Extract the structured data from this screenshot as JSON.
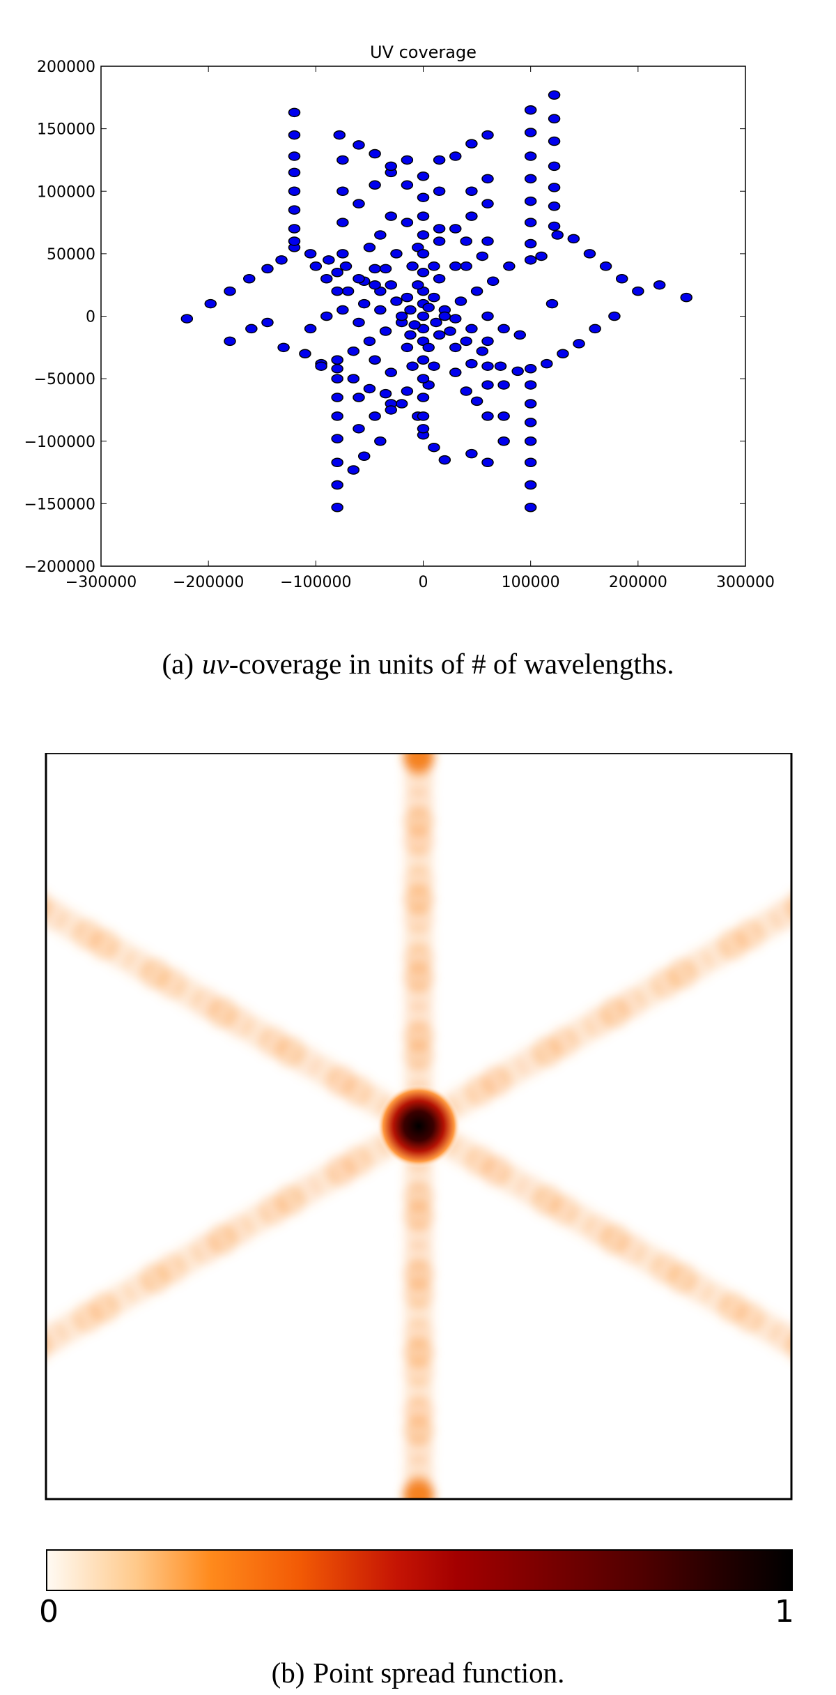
{
  "figure_a": {
    "caption_label": "(a)",
    "caption_em": "uv",
    "caption_rest": "-coverage in units of # of wavelengths."
  },
  "figure_b": {
    "caption_label": "(b)",
    "caption_text": "Point spread function.",
    "colorbar": {
      "min_label": "0",
      "max_label": "1",
      "colormap": [
        "#fffaf3",
        "#ffc98a",
        "#ff8a1c",
        "#f25a05",
        "#c51404",
        "#a30000",
        "#7d0000",
        "#4f0000",
        "#220000",
        "#000000"
      ]
    }
  },
  "chart_data": [
    {
      "type": "scatter",
      "title": "UV coverage",
      "xlabel": "",
      "ylabel": "",
      "xlim": [
        -300000,
        300000
      ],
      "ylim": [
        -200000,
        200000
      ],
      "xticks": [
        -300000,
        -200000,
        -100000,
        0,
        100000,
        200000,
        300000
      ],
      "yticks": [
        -200000,
        -150000,
        -100000,
        -50000,
        0,
        50000,
        100000,
        150000,
        200000
      ],
      "xtick_labels": [
        "−300000",
        "−200000",
        "−100000",
        "0",
        "100000",
        "200000",
        "300000"
      ],
      "ytick_labels": [
        "−200000",
        "−150000",
        "−100000",
        "−50000",
        "0",
        "50000",
        "100000",
        "150000",
        "200000"
      ],
      "grid": false,
      "marker_color": "#0000ee",
      "marker_edge": "#000000",
      "points": [
        [
          -220000,
          -2000
        ],
        [
          -198000,
          10000
        ],
        [
          -180000,
          20000
        ],
        [
          -162000,
          30000
        ],
        [
          -145000,
          38000
        ],
        [
          -132000,
          45000
        ],
        [
          -120000,
          55000
        ],
        [
          -105000,
          50000
        ],
        [
          -88000,
          45000
        ],
        [
          -72000,
          40000
        ],
        [
          -55000,
          28000
        ],
        [
          -40000,
          20000
        ],
        [
          -25000,
          12000
        ],
        [
          -12000,
          5000
        ],
        [
          0,
          0
        ],
        [
          12000,
          -5000
        ],
        [
          25000,
          -12000
        ],
        [
          40000,
          -20000
        ],
        [
          55000,
          -28000
        ],
        [
          72000,
          -40000
        ],
        [
          88000,
          -44000
        ],
        [
          100000,
          -42000
        ],
        [
          115000,
          -38000
        ],
        [
          130000,
          -30000
        ],
        [
          145000,
          -22000
        ],
        [
          160000,
          -10000
        ],
        [
          178000,
          0
        ],
        [
          -180000,
          -20000
        ],
        [
          -160000,
          -10000
        ],
        [
          -145000,
          -5000
        ],
        [
          -130000,
          -25000
        ],
        [
          -110000,
          -30000
        ],
        [
          -95000,
          -38000
        ],
        [
          -80000,
          -42000
        ],
        [
          -65000,
          -50000
        ],
        [
          -50000,
          -58000
        ],
        [
          -35000,
          -62000
        ],
        [
          -20000,
          -70000
        ],
        [
          -5000,
          -80000
        ],
        [
          0,
          -95000
        ],
        [
          10000,
          -105000
        ],
        [
          20000,
          -115000
        ],
        [
          45000,
          -110000
        ],
        [
          60000,
          -117000
        ],
        [
          110000,
          48000
        ],
        [
          125000,
          65000
        ],
        [
          140000,
          62000
        ],
        [
          155000,
          50000
        ],
        [
          170000,
          40000
        ],
        [
          185000,
          30000
        ],
        [
          200000,
          20000
        ],
        [
          220000,
          25000
        ],
        [
          245000,
          15000
        ],
        [
          120000,
          10000
        ],
        [
          80000,
          40000
        ],
        [
          65000,
          28000
        ],
        [
          50000,
          20000
        ],
        [
          35000,
          12000
        ],
        [
          20000,
          5000
        ],
        [
          -20000,
          -5000
        ],
        [
          -35000,
          -12000
        ],
        [
          -50000,
          -20000
        ],
        [
          -65000,
          -28000
        ],
        [
          -80000,
          -35000
        ],
        [
          -95000,
          -40000
        ],
        [
          -45000,
          38000
        ],
        [
          -30000,
          25000
        ],
        [
          -15000,
          15000
        ],
        [
          15000,
          -15000
        ],
        [
          30000,
          -25000
        ],
        [
          45000,
          -38000
        ],
        [
          -60000,
          90000
        ],
        [
          -45000,
          105000
        ],
        [
          -30000,
          115000
        ],
        [
          -15000,
          125000
        ],
        [
          0,
          112000
        ],
        [
          15000,
          125000
        ],
        [
          30000,
          128000
        ],
        [
          45000,
          138000
        ],
        [
          -60000,
          -90000
        ],
        [
          -45000,
          -80000
        ],
        [
          -30000,
          -70000
        ],
        [
          -15000,
          -60000
        ],
        [
          15000,
          60000
        ],
        [
          30000,
          70000
        ],
        [
          45000,
          80000
        ],
        [
          60000,
          90000
        ],
        [
          -75000,
          125000
        ],
        [
          -75000,
          100000
        ],
        [
          -75000,
          75000
        ],
        [
          -75000,
          50000
        ],
        [
          75000,
          -55000
        ],
        [
          75000,
          -80000
        ],
        [
          75000,
          -100000
        ],
        [
          -50000,
          55000
        ],
        [
          -40000,
          65000
        ],
        [
          -30000,
          80000
        ],
        [
          30000,
          -45000
        ],
        [
          40000,
          -60000
        ],
        [
          50000,
          -68000
        ],
        [
          -100000,
          40000
        ],
        [
          -90000,
          30000
        ],
        [
          -70000,
          20000
        ],
        [
          -55000,
          10000
        ],
        [
          -40000,
          5000
        ],
        [
          40000,
          40000
        ],
        [
          55000,
          48000
        ],
        [
          60000,
          60000
        ],
        [
          -10000,
          40000
        ],
        [
          -5000,
          55000
        ],
        [
          10000,
          40000
        ],
        [
          -10000,
          -40000
        ],
        [
          5000,
          -55000
        ],
        [
          10000,
          -40000
        ],
        [
          -120000,
          60000
        ],
        [
          -120000,
          70000
        ],
        [
          -120000,
          85000
        ],
        [
          -120000,
          100000
        ],
        [
          -120000,
          115000
        ],
        [
          -120000,
          128000
        ],
        [
          -120000,
          145000
        ],
        [
          -120000,
          163000
        ],
        [
          -78000,
          145000
        ],
        [
          -80000,
          35000
        ],
        [
          -80000,
          20000
        ],
        [
          -80000,
          -35000
        ],
        [
          -80000,
          -50000
        ],
        [
          -80000,
          -65000
        ],
        [
          -80000,
          -80000
        ],
        [
          -80000,
          -98000
        ],
        [
          -80000,
          -117000
        ],
        [
          -80000,
          -135000
        ],
        [
          -80000,
          -153000
        ],
        [
          0,
          95000
        ],
        [
          0,
          80000
        ],
        [
          0,
          65000
        ],
        [
          0,
          50000
        ],
        [
          0,
          35000
        ],
        [
          0,
          20000
        ],
        [
          0,
          10000
        ],
        [
          0,
          -10000
        ],
        [
          0,
          -20000
        ],
        [
          0,
          -35000
        ],
        [
          0,
          -50000
        ],
        [
          0,
          -65000
        ],
        [
          0,
          -80000
        ],
        [
          0,
          -90000
        ],
        [
          100000,
          165000
        ],
        [
          100000,
          147000
        ],
        [
          100000,
          128000
        ],
        [
          100000,
          110000
        ],
        [
          100000,
          92000
        ],
        [
          100000,
          75000
        ],
        [
          100000,
          58000
        ],
        [
          100000,
          45000
        ],
        [
          100000,
          -55000
        ],
        [
          100000,
          -70000
        ],
        [
          100000,
          -85000
        ],
        [
          100000,
          -100000
        ],
        [
          100000,
          -117000
        ],
        [
          100000,
          -135000
        ],
        [
          100000,
          -153000
        ],
        [
          122000,
          177000
        ],
        [
          122000,
          158000
        ],
        [
          122000,
          140000
        ],
        [
          122000,
          120000
        ],
        [
          122000,
          103000
        ],
        [
          122000,
          88000
        ],
        [
          122000,
          72000
        ],
        [
          -60000,
          137000
        ],
        [
          -45000,
          130000
        ],
        [
          -30000,
          120000
        ],
        [
          -65000,
          -123000
        ],
        [
          -55000,
          -112000
        ],
        [
          -40000,
          -100000
        ],
        [
          -45000,
          -35000
        ],
        [
          -30000,
          -45000
        ],
        [
          -15000,
          -25000
        ],
        [
          -60000,
          -5000
        ],
        [
          -75000,
          5000
        ],
        [
          -90000,
          0
        ],
        [
          -105000,
          -10000
        ],
        [
          60000,
          0
        ],
        [
          75000,
          -10000
        ],
        [
          90000,
          -15000
        ],
        [
          15000,
          30000
        ],
        [
          30000,
          40000
        ],
        [
          -35000,
          38000
        ],
        [
          -25000,
          50000
        ],
        [
          60000,
          -20000
        ],
        [
          45000,
          -10000
        ],
        [
          30000,
          -2000
        ],
        [
          -15000,
          105000
        ],
        [
          15000,
          100000
        ],
        [
          -15000,
          75000
        ],
        [
          15000,
          70000
        ],
        [
          -20000,
          0
        ],
        [
          20000,
          0
        ],
        [
          -5000,
          25000
        ],
        [
          5000,
          -25000
        ],
        [
          60000,
          -40000
        ],
        [
          60000,
          -55000
        ],
        [
          60000,
          -80000
        ],
        [
          60000,
          145000
        ],
        [
          60000,
          110000
        ],
        [
          -30000,
          -75000
        ],
        [
          -60000,
          -65000
        ],
        [
          45000,
          100000
        ],
        [
          40000,
          60000
        ],
        [
          -45000,
          25000
        ],
        [
          -60000,
          30000
        ],
        [
          5000,
          7000
        ],
        [
          -8000,
          -7000
        ],
        [
          10000,
          15000
        ],
        [
          -12000,
          -15000
        ]
      ]
    },
    {
      "type": "heatmap",
      "title": "",
      "xlabel": "",
      "ylabel": "",
      "colorbar_range": [
        0,
        1
      ],
      "peak": 1,
      "rays": [
        {
          "angle_deg": 90,
          "peak_value": 0.35
        },
        {
          "angle_deg": 270,
          "peak_value": 0.35
        },
        {
          "angle_deg": 30,
          "peak_value": 0.3
        },
        {
          "angle_deg": 150,
          "peak_value": 0.3
        },
        {
          "angle_deg": 210,
          "peak_value": 0.3
        },
        {
          "angle_deg": 330,
          "peak_value": 0.3
        }
      ]
    }
  ]
}
